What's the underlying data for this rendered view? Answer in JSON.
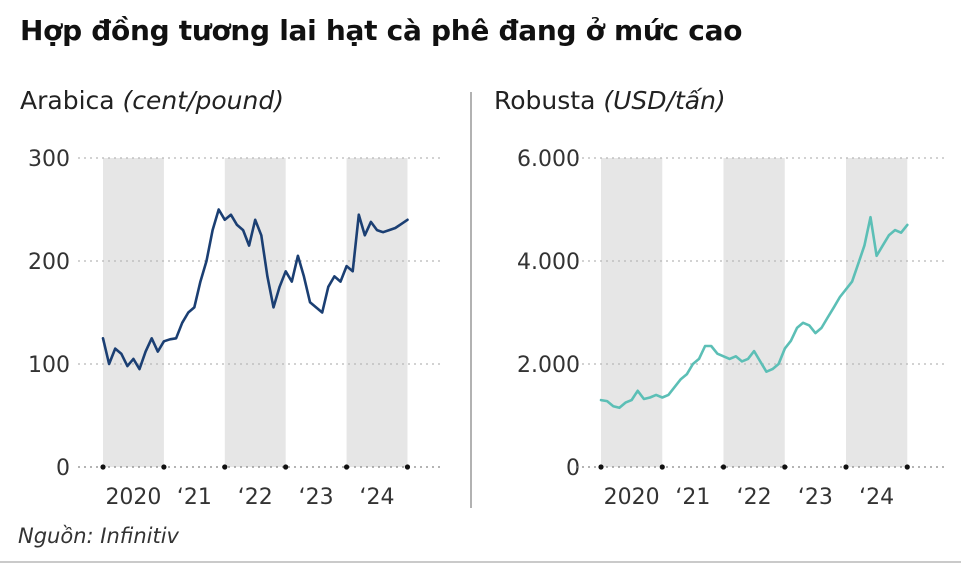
{
  "title": "Hợp đồng tương lai hạt cà phê đang ở mức cao",
  "source": "Nguồn: Infinitiv",
  "colors": {
    "arabica": "#1b3f73",
    "robusta": "#5cbfb6",
    "band": "#e6e6e6",
    "grid": "#b8b8b8",
    "divider": "#999999",
    "bottom_rule": "#aaaaaa"
  },
  "chart_data": [
    {
      "type": "line",
      "name": "Arabica",
      "unit": "(cent/pound)",
      "ylim": [
        0,
        300
      ],
      "y_ticks": [
        0,
        100,
        200,
        300
      ],
      "y_tick_labels": [
        "0",
        "100",
        "200",
        "300"
      ],
      "xlim": [
        2019.0,
        2024.6
      ],
      "x_ticks": [
        2019.0,
        2020.0,
        2021.0,
        2022.0,
        2023.0,
        2024.0
      ],
      "year_labels": [
        {
          "x": 2019.5,
          "label": "2020"
        },
        {
          "x": 2020.5,
          "label": "‘21"
        },
        {
          "x": 2021.5,
          "label": "‘22"
        },
        {
          "x": 2022.5,
          "label": "‘23"
        },
        {
          "x": 2023.5,
          "label": "‘24"
        }
      ],
      "shaded_years": [
        [
          2019.0,
          2020.0
        ],
        [
          2021.0,
          2022.0
        ],
        [
          2023.0,
          2024.0
        ]
      ],
      "grid": true,
      "x": [
        2019.0,
        2019.1,
        2019.2,
        2019.3,
        2019.4,
        2019.5,
        2019.6,
        2019.7,
        2019.8,
        2019.9,
        2020.0,
        2020.1,
        2020.2,
        2020.3,
        2020.4,
        2020.5,
        2020.6,
        2020.7,
        2020.8,
        2020.9,
        2021.0,
        2021.1,
        2021.2,
        2021.3,
        2021.4,
        2021.5,
        2021.6,
        2021.7,
        2021.8,
        2021.9,
        2022.0,
        2022.1,
        2022.2,
        2022.3,
        2022.4,
        2022.5,
        2022.6,
        2022.7,
        2022.8,
        2022.9,
        2023.0,
        2023.1,
        2023.2,
        2023.3,
        2023.4,
        2023.5,
        2023.6,
        2023.7,
        2023.8,
        2023.9,
        2024.0
      ],
      "y": [
        125,
        100,
        115,
        110,
        98,
        105,
        95,
        112,
        125,
        112,
        122,
        124,
        125,
        140,
        150,
        155,
        180,
        200,
        230,
        250,
        240,
        245,
        235,
        230,
        215,
        240,
        225,
        185,
        155,
        175,
        190,
        180,
        205,
        185,
        160,
        155,
        150,
        175,
        185,
        180,
        195,
        190,
        245,
        225,
        238,
        230,
        228,
        230,
        232,
        236,
        240
      ],
      "y_labels_shown": [
        "0",
        "100",
        "200",
        "300"
      ]
    },
    {
      "type": "line",
      "name": "Robusta",
      "unit": "(USD/tấn)",
      "ylim": [
        0,
        6000
      ],
      "y_ticks": [
        0,
        2000,
        4000,
        6000
      ],
      "y_tick_labels": [
        "0",
        "2.000",
        "4.000",
        "6.000"
      ],
      "xlim": [
        2019.0,
        2024.6
      ],
      "x_ticks": [
        2019.0,
        2020.0,
        2021.0,
        2022.0,
        2023.0,
        2024.0
      ],
      "year_labels": [
        {
          "x": 2019.5,
          "label": "2020"
        },
        {
          "x": 2020.5,
          "label": "‘21"
        },
        {
          "x": 2021.5,
          "label": "‘22"
        },
        {
          "x": 2022.5,
          "label": "‘23"
        },
        {
          "x": 2023.5,
          "label": "‘24"
        }
      ],
      "shaded_years": [
        [
          2019.0,
          2020.0
        ],
        [
          2021.0,
          2022.0
        ],
        [
          2023.0,
          2024.0
        ]
      ],
      "grid": true,
      "x": [
        2019.0,
        2019.1,
        2019.2,
        2019.3,
        2019.4,
        2019.5,
        2019.6,
        2019.7,
        2019.8,
        2019.9,
        2020.0,
        2020.1,
        2020.2,
        2020.3,
        2020.4,
        2020.5,
        2020.6,
        2020.7,
        2020.8,
        2020.9,
        2021.0,
        2021.1,
        2021.2,
        2021.3,
        2021.4,
        2021.5,
        2021.6,
        2021.7,
        2021.8,
        2021.9,
        2022.0,
        2022.1,
        2022.2,
        2022.3,
        2022.4,
        2022.5,
        2022.6,
        2022.7,
        2022.8,
        2022.9,
        2023.0,
        2023.1,
        2023.2,
        2023.3,
        2023.4,
        2023.5,
        2023.6,
        2023.7,
        2023.8,
        2023.9,
        2024.0
      ],
      "y": [
        1300,
        1280,
        1180,
        1150,
        1250,
        1300,
        1480,
        1320,
        1350,
        1400,
        1350,
        1400,
        1550,
        1700,
        1800,
        2000,
        2100,
        2350,
        2350,
        2200,
        2150,
        2100,
        2150,
        2050,
        2100,
        2250,
        2050,
        1850,
        1900,
        2000,
        2300,
        2450,
        2700,
        2800,
        2750,
        2600,
        2700,
        2900,
        3100,
        3300,
        3450,
        3600,
        3950,
        4300,
        4850,
        4100,
        4300,
        4500,
        4600,
        4550,
        4700
      ],
      "y_labels_shown": [
        "0",
        "2.000",
        "4.000",
        "6.000"
      ]
    }
  ],
  "panels": {
    "arabica": {
      "label": "Arabica",
      "unit": "(cent/pound)"
    },
    "robusta": {
      "label": "Robusta",
      "unit": "(USD/tấn)"
    }
  }
}
